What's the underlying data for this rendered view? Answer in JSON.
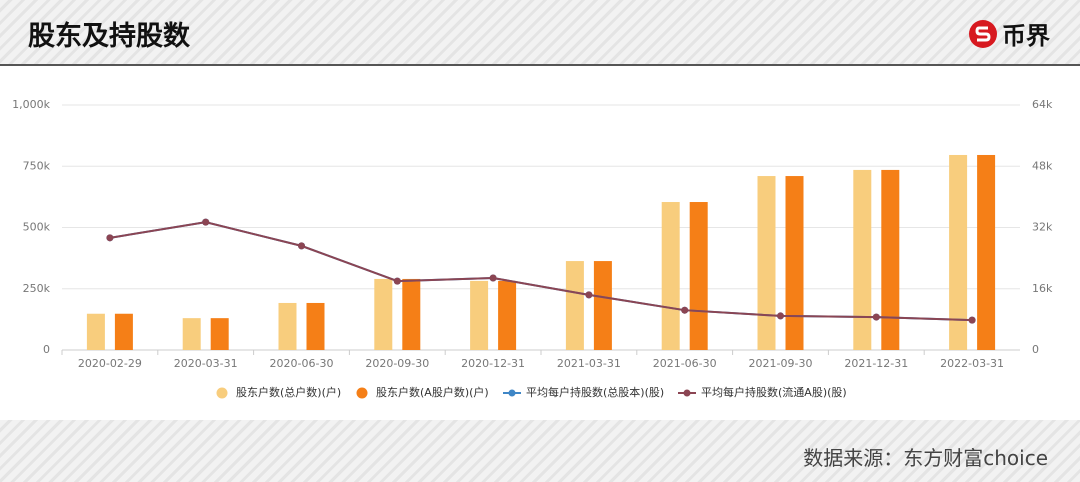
{
  "header": {
    "title": "股东及持股数",
    "logo": "币界"
  },
  "footer": {
    "source": "数据来源：东方财富choice"
  },
  "chart_data": {
    "type": "bar",
    "categories": [
      "2020-02-29",
      "2020-03-31",
      "2020-06-30",
      "2020-09-30",
      "2020-12-31",
      "2021-03-31",
      "2021-06-30",
      "2021-09-30",
      "2021-12-31",
      "2022-03-31"
    ],
    "series": [
      {
        "name": "股东户数(总户数)(户)",
        "color": "#f8cd7d",
        "values": [
          148000,
          130000,
          192000,
          290000,
          282000,
          363000,
          604000,
          710000,
          735000,
          796000
        ]
      },
      {
        "name": "股东户数(A股户数)(户)",
        "color": "#f57f17",
        "values": [
          148000,
          130000,
          192000,
          290000,
          282000,
          363000,
          604000,
          710000,
          735000,
          796000
        ]
      },
      {
        "name": "平均每户持股数(总股本)(股)",
        "color": "#3f86c6",
        "axis": "y2",
        "type": "line",
        "values": [
          29300,
          33400,
          27200,
          18000,
          18800,
          14400,
          10400,
          8900,
          8600,
          7800
        ]
      },
      {
        "name": "平均每户持股数(流通A股)(股)",
        "color": "#8b4553",
        "axis": "y2",
        "type": "line",
        "values": [
          29300,
          33400,
          27200,
          18000,
          18800,
          14400,
          10400,
          8900,
          8600,
          7800
        ]
      }
    ],
    "ylim": [
      0,
      1000000
    ],
    "yticks": [
      0,
      {
        "value": 250000,
        "label": "250k"
      },
      {
        "value": 500000,
        "label": "500k"
      },
      {
        "value": 750000,
        "label": "750k"
      },
      {
        "value": 1000000,
        "label": "1,000k"
      }
    ],
    "y2lim": [
      0,
      64000
    ],
    "y2ticks": [
      0,
      {
        "value": 16000,
        "label": "16k"
      },
      {
        "value": 32000,
        "label": "32k"
      },
      {
        "value": 48000,
        "label": "48k"
      },
      {
        "value": 64000,
        "label": "64k"
      }
    ],
    "grid": true
  }
}
